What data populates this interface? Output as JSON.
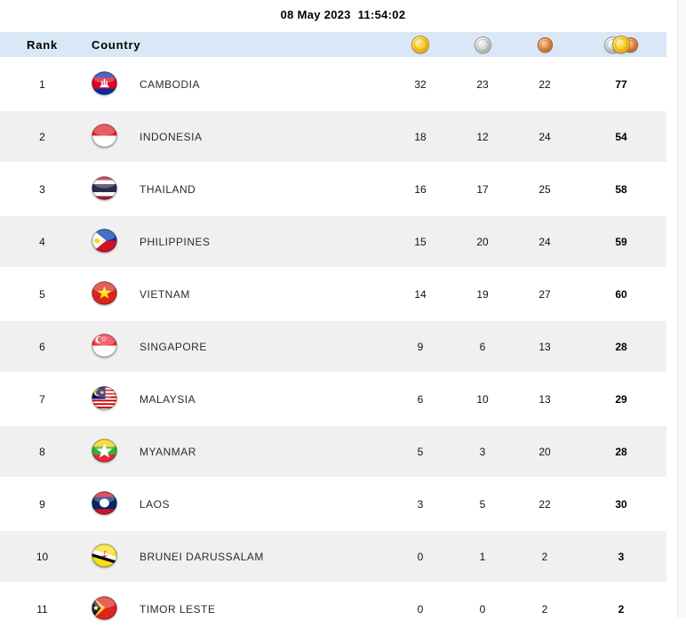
{
  "datetime": "08 May 2023  11:54:02",
  "colors": {
    "header_row_bg": "#d9e7f6",
    "alt_row_bg": "#f0f0f0",
    "gold": "#fcd33a",
    "silver": "#dcdcdc",
    "bronze": "#e59a55"
  },
  "table": {
    "headers": {
      "rank": "Rank",
      "country": "Country"
    },
    "icons": {
      "gold_column": "gold-medal-icon",
      "silver_column": "silver-medal-icon",
      "bronze_column": "bronze-medal-icon",
      "total_column": "total-medals-icon"
    },
    "rows": [
      {
        "rank": "1",
        "country": "CAMBODIA",
        "flag": "cambodia",
        "gold": "32",
        "silver": "23",
        "bronze": "22",
        "total": "77"
      },
      {
        "rank": "2",
        "country": "INDONESIA",
        "flag": "indonesia",
        "gold": "18",
        "silver": "12",
        "bronze": "24",
        "total": "54"
      },
      {
        "rank": "3",
        "country": "THAILAND",
        "flag": "thailand",
        "gold": "16",
        "silver": "17",
        "bronze": "25",
        "total": "58"
      },
      {
        "rank": "4",
        "country": "PHILIPPINES",
        "flag": "philippines",
        "gold": "15",
        "silver": "20",
        "bronze": "24",
        "total": "59"
      },
      {
        "rank": "5",
        "country": "VIETNAM",
        "flag": "vietnam",
        "gold": "14",
        "silver": "19",
        "bronze": "27",
        "total": "60"
      },
      {
        "rank": "6",
        "country": "SINGAPORE",
        "flag": "singapore",
        "gold": "9",
        "silver": "6",
        "bronze": "13",
        "total": "28"
      },
      {
        "rank": "7",
        "country": "MALAYSIA",
        "flag": "malaysia",
        "gold": "6",
        "silver": "10",
        "bronze": "13",
        "total": "29"
      },
      {
        "rank": "8",
        "country": "MYANMAR",
        "flag": "myanmar",
        "gold": "5",
        "silver": "3",
        "bronze": "20",
        "total": "28"
      },
      {
        "rank": "9",
        "country": "LAOS",
        "flag": "laos",
        "gold": "3",
        "silver": "5",
        "bronze": "22",
        "total": "30"
      },
      {
        "rank": "10",
        "country": "BRUNEI DARUSSALAM",
        "flag": "brunei",
        "gold": "0",
        "silver": "1",
        "bronze": "2",
        "total": "3"
      },
      {
        "rank": "11",
        "country": "TIMOR LESTE",
        "flag": "timor_leste",
        "gold": "0",
        "silver": "0",
        "bronze": "2",
        "total": "2"
      }
    ]
  }
}
